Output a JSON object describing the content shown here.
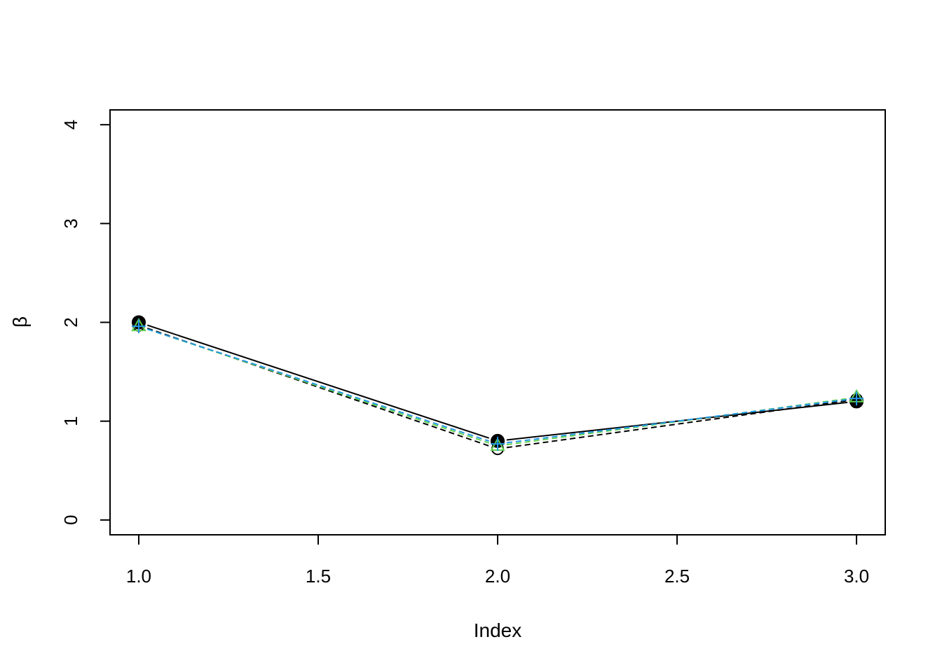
{
  "chart_data": {
    "type": "line",
    "xlabel": "Index",
    "ylabel": "β",
    "xlim": [
      0.92,
      3.08
    ],
    "ylim": [
      -0.15,
      4.15
    ],
    "x_ticks": [
      "1.0",
      "1.5",
      "2.0",
      "2.5",
      "3.0"
    ],
    "y_ticks": [
      "0",
      "1",
      "2",
      "3",
      "4"
    ],
    "grid": false,
    "x": [
      1,
      2,
      3
    ],
    "series": [
      {
        "values": [
          2.0,
          0.8,
          1.2
        ],
        "color": "#000000",
        "line": "solid",
        "marker": "filled-circle"
      },
      {
        "values": [
          1.97,
          0.72,
          1.22
        ],
        "color": "#000000",
        "line": "dashed",
        "marker": "open-circle"
      },
      {
        "values": [
          1.96,
          0.75,
          1.24
        ],
        "color": "#61d04f",
        "line": "dashed",
        "marker": "triangle"
      },
      {
        "values": [
          1.96,
          0.77,
          1.23
        ],
        "color": "#2297e6",
        "line": "dashed",
        "marker": "plus"
      }
    ]
  }
}
